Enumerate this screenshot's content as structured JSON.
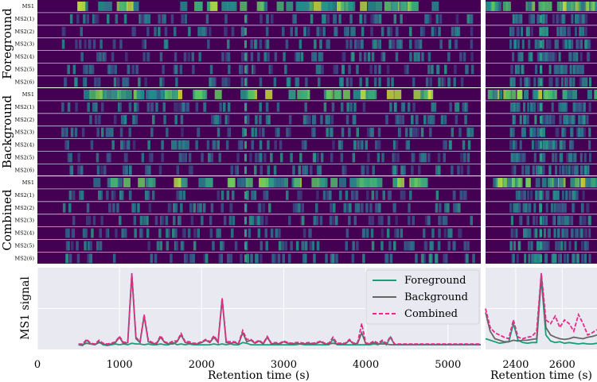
{
  "colors": {
    "heatmap_bg": "#440154",
    "heatmap_mid": "#21918c",
    "heatmap_hi": "#fde725",
    "plot_bg": "#e9e9f1",
    "foreground": "#1b9e77",
    "background": "#666666",
    "combined": "#e7298a"
  },
  "groups": [
    {
      "label": "Foreground"
    },
    {
      "label": "Background"
    },
    {
      "label": "Combined"
    }
  ],
  "rows": [
    "MS1",
    "MS2(1)",
    "MS2(2)",
    "MS2(3)",
    "MS2(4)",
    "MS2(5)",
    "MS2(6)"
  ],
  "chart_data": [
    {
      "type": "line",
      "ylabel": "MS1 signal",
      "xlabel": "Retention time (s)",
      "xlim": [
        0,
        5400
      ],
      "ylim": [
        0,
        1.0
      ],
      "xticks": [
        "0",
        "1000",
        "2000",
        "3000",
        "4000",
        "5000"
      ],
      "grid": true,
      "legend": "top-right",
      "x": [
        500,
        550,
        600,
        650,
        700,
        750,
        800,
        850,
        900,
        950,
        1000,
        1050,
        1100,
        1150,
        1200,
        1250,
        1300,
        1350,
        1400,
        1450,
        1500,
        1550,
        1600,
        1650,
        1700,
        1750,
        1800,
        1850,
        1900,
        1950,
        2000,
        2050,
        2100,
        2150,
        2200,
        2250,
        2300,
        2350,
        2400,
        2450,
        2500,
        2550,
        2600,
        2650,
        2700,
        2750,
        2800,
        2850,
        2900,
        2950,
        3000,
        3050,
        3100,
        3150,
        3200,
        3250,
        3300,
        3350,
        3400,
        3450,
        3500,
        3550,
        3600,
        3650,
        3700,
        3750,
        3800,
        3850,
        3900,
        3950,
        4000,
        4050,
        4100,
        4150,
        4200,
        4250,
        4300,
        4350,
        4400,
        4450,
        4500,
        4550,
        4600,
        4650,
        4700,
        4750,
        4800,
        4850,
        4900,
        4950,
        5000,
        5050,
        5100,
        5150,
        5200,
        5250,
        5300,
        5350,
        5400
      ],
      "series": [
        {
          "name": "Foreground",
          "values": [
            0.02,
            0.01,
            0.08,
            0.03,
            0.02,
            0.06,
            0.02,
            0.01,
            0.02,
            0.03,
            0.02,
            0.03,
            0.02,
            0.04,
            0.03,
            0.03,
            0.02,
            0.03,
            0.02,
            0.02,
            0.03,
            0.02,
            0.02,
            0.05,
            0.02,
            0.03,
            0.02,
            0.03,
            0.02,
            0.02,
            0.02,
            0.02,
            0.02,
            0.03,
            0.02,
            0.03,
            0.02,
            0.03,
            0.02,
            0.02,
            0.05,
            0.04,
            0.02,
            0.02,
            0.02,
            0.02,
            0.02,
            0.02,
            0.02,
            0.02,
            0.02,
            0.02,
            0.02,
            0.02,
            0.03,
            0.02,
            0.02,
            0.02,
            0.02,
            0.02,
            0.02,
            0.02,
            0.09,
            0.02,
            0.02,
            0.02,
            0.02,
            0.02,
            0.02,
            0.02,
            0.02,
            0.02,
            0.03,
            0.02,
            0.06,
            0.02,
            0.12,
            0.02,
            0.02,
            0.02,
            0.02,
            0.02,
            0.02,
            0.02,
            0.02,
            0.02,
            0.02,
            0.02,
            0.02,
            0.02,
            0.02,
            0.02,
            0.02,
            0.02,
            0.02,
            0.02,
            0.02,
            0.02,
            0.02
          ]
        },
        {
          "name": "Background",
          "values": [
            0.02,
            0.02,
            0.04,
            0.03,
            0.02,
            0.05,
            0.03,
            0.02,
            0.03,
            0.05,
            0.12,
            0.03,
            0.05,
            0.95,
            0.1,
            0.05,
            0.4,
            0.06,
            0.04,
            0.03,
            0.12,
            0.05,
            0.03,
            0.03,
            0.06,
            0.15,
            0.05,
            0.04,
            0.03,
            0.03,
            0.05,
            0.08,
            0.05,
            0.12,
            0.05,
            0.62,
            0.05,
            0.04,
            0.05,
            0.03,
            0.18,
            0.06,
            0.08,
            0.04,
            0.07,
            0.03,
            0.12,
            0.03,
            0.04,
            0.03,
            0.06,
            0.04,
            0.03,
            0.04,
            0.03,
            0.03,
            0.04,
            0.03,
            0.04,
            0.06,
            0.03,
            0.03,
            0.04,
            0.03,
            0.03,
            0.03,
            0.08,
            0.03,
            0.04,
            0.18,
            0.03,
            0.03,
            0.05,
            0.03,
            0.03,
            0.03,
            0.02,
            0.02,
            0.02,
            0.02,
            0.02,
            0.02,
            0.02,
            0.02,
            0.02,
            0.02,
            0.02,
            0.02,
            0.02,
            0.02,
            0.02,
            0.02,
            0.02,
            0.02,
            0.02,
            0.02,
            0.02,
            0.02,
            0.02
          ]
        },
        {
          "name": "Combined",
          "values": [
            0.03,
            0.03,
            0.09,
            0.04,
            0.03,
            0.08,
            0.04,
            0.03,
            0.04,
            0.06,
            0.13,
            0.05,
            0.06,
            0.97,
            0.12,
            0.06,
            0.42,
            0.08,
            0.05,
            0.04,
            0.14,
            0.06,
            0.04,
            0.07,
            0.07,
            0.17,
            0.06,
            0.06,
            0.04,
            0.04,
            0.06,
            0.09,
            0.06,
            0.14,
            0.06,
            0.64,
            0.06,
            0.06,
            0.06,
            0.04,
            0.21,
            0.09,
            0.09,
            0.05,
            0.08,
            0.04,
            0.13,
            0.04,
            0.05,
            0.04,
            0.07,
            0.05,
            0.04,
            0.05,
            0.05,
            0.04,
            0.05,
            0.04,
            0.05,
            0.07,
            0.04,
            0.04,
            0.12,
            0.04,
            0.04,
            0.04,
            0.09,
            0.04,
            0.05,
            0.3,
            0.04,
            0.04,
            0.07,
            0.04,
            0.08,
            0.04,
            0.13,
            0.03,
            0.03,
            0.03,
            0.03,
            0.03,
            0.03,
            0.03,
            0.03,
            0.03,
            0.03,
            0.03,
            0.03,
            0.03,
            0.03,
            0.03,
            0.03,
            0.03,
            0.03,
            0.03,
            0.03,
            0.03,
            0.03
          ]
        }
      ]
    },
    {
      "type": "line",
      "xlabel": "Retention time (s)",
      "xlim": [
        2270,
        2750
      ],
      "ylim": [
        0,
        1.0
      ],
      "xticks": [
        "2400",
        "2600"
      ],
      "grid": true,
      "x": [
        2270,
        2290,
        2310,
        2330,
        2350,
        2370,
        2390,
        2410,
        2430,
        2450,
        2470,
        2490,
        2510,
        2530,
        2550,
        2570,
        2590,
        2610,
        2630,
        2650,
        2670,
        2690,
        2710,
        2730,
        2750
      ],
      "series": [
        {
          "name": "Foreground",
          "values": [
            0.1,
            0.08,
            0.06,
            0.04,
            0.05,
            0.06,
            0.3,
            0.08,
            0.05,
            0.04,
            0.05,
            0.05,
            0.9,
            0.15,
            0.07,
            0.05,
            0.06,
            0.04,
            0.05,
            0.04,
            0.03,
            0.04,
            0.03,
            0.03,
            0.04
          ]
        },
        {
          "name": "Background",
          "values": [
            0.45,
            0.2,
            0.1,
            0.08,
            0.06,
            0.06,
            0.08,
            0.07,
            0.08,
            0.08,
            0.09,
            0.1,
            0.95,
            0.25,
            0.15,
            0.12,
            0.1,
            0.09,
            0.1,
            0.12,
            0.11,
            0.1,
            0.12,
            0.13,
            0.15
          ]
        },
        {
          "name": "Combined",
          "values": [
            0.5,
            0.25,
            0.18,
            0.15,
            0.12,
            0.1,
            0.35,
            0.12,
            0.1,
            0.12,
            0.13,
            0.2,
            0.97,
            0.35,
            0.3,
            0.4,
            0.25,
            0.35,
            0.3,
            0.2,
            0.42,
            0.3,
            0.15,
            0.18,
            0.22
          ]
        }
      ]
    }
  ]
}
